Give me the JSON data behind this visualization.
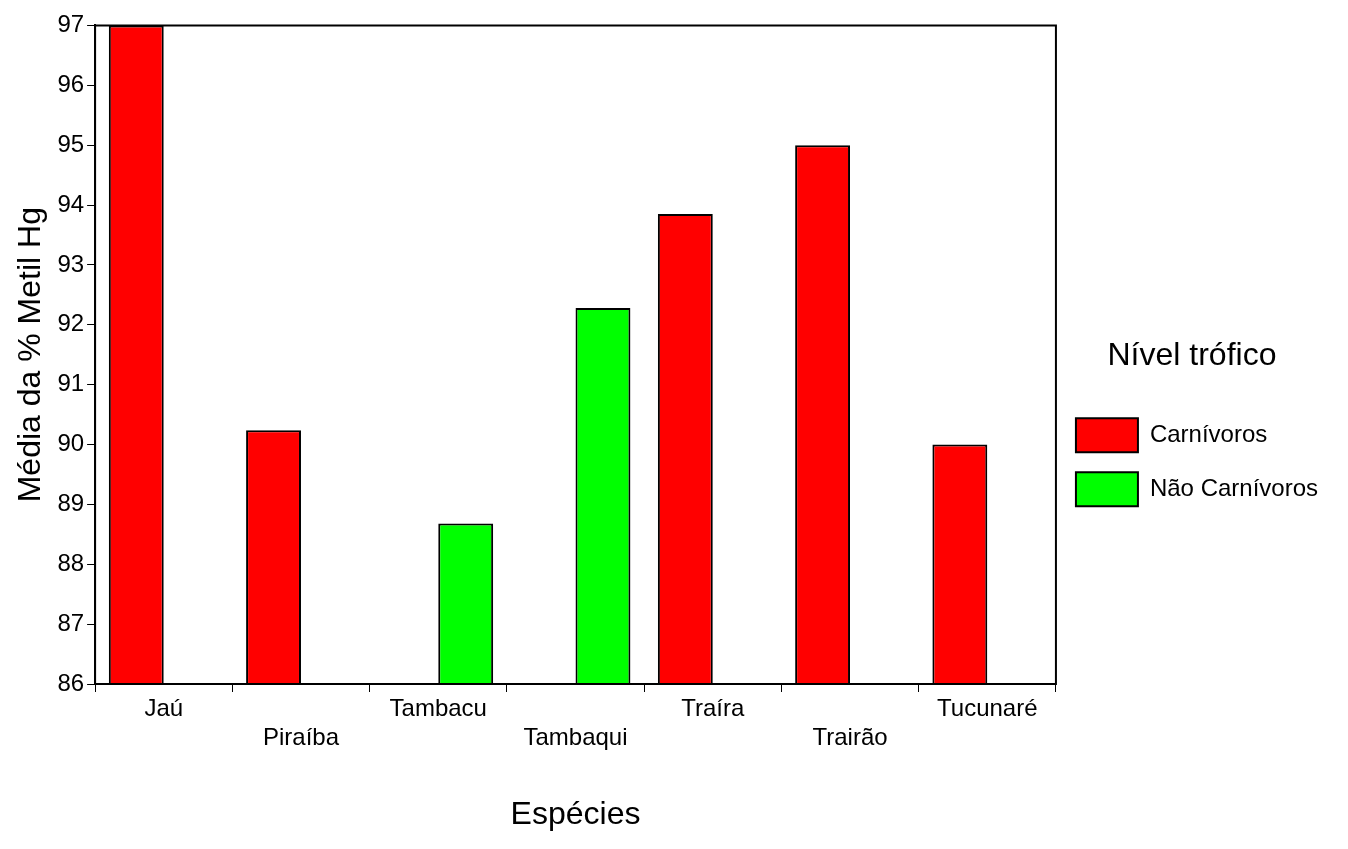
{
  "chart_data": {
    "type": "bar",
    "xlabel": "Espécies",
    "ylabel": "Média da % Metil Hg",
    "legend_title": "Nível trófico",
    "categories": [
      "Jaú",
      "Piraíba",
      "Tambacu",
      "Tambaqui",
      "Traíra",
      "Trairão",
      "Tucunaré"
    ],
    "series": [
      {
        "name": "Carnívoros",
        "color": "#ff0000",
        "values": [
          97,
          90.24,
          null,
          null,
          93.85,
          95,
          90
        ]
      },
      {
        "name": "Não Carnívoros",
        "color": "#00ff00",
        "values": [
          null,
          null,
          88.68,
          92.28,
          null,
          null,
          null
        ]
      }
    ],
    "ylim": [
      86,
      97
    ],
    "yticks": [
      86,
      87,
      88,
      89,
      90,
      91,
      92,
      93,
      94,
      95,
      96,
      97
    ],
    "grid": false,
    "legend": "right"
  }
}
